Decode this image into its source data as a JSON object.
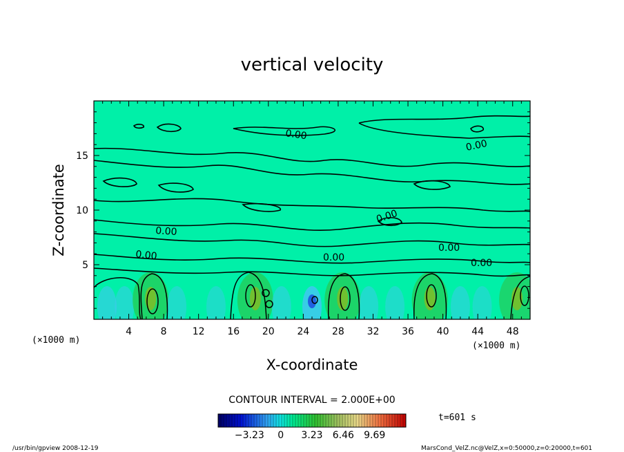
{
  "chart_data": {
    "type": "heatmap",
    "title": "vertical velocity",
    "xlabel": "X-coordinate",
    "ylabel": "Z-coordinate",
    "x_unit_left": "(×1000 m)",
    "x_unit_right": "(×1000 m)",
    "xlim": [
      0,
      50
    ],
    "ylim": [
      0,
      20
    ],
    "x_ticks": [
      4,
      8,
      12,
      16,
      20,
      24,
      28,
      32,
      36,
      40,
      44,
      48
    ],
    "y_ticks": [
      5,
      10,
      15
    ],
    "contour_interval_label": "CONTOUR INTERVAL = 2.000E+00",
    "contour_labels": [
      "0.00",
      "0.00",
      "0.00",
      "0.00",
      "0.00",
      "0.00",
      "0.00",
      "0.00",
      "0.00"
    ],
    "colorbar_ticks": [
      "-3.23",
      "0",
      "3.23",
      "6.46",
      "9.69"
    ],
    "colorbar_range": [
      -6.46,
      12.92
    ],
    "background_value": 0,
    "colors": {
      "background_field": "#00f0a8",
      "negative": "#40c8f0",
      "positive": "#20d060",
      "contour": "#000000"
    },
    "cells": [
      {
        "x": 1.5,
        "value": -1.8
      },
      {
        "x": 3.5,
        "value": -1.5
      },
      {
        "x": 6.5,
        "value": 2.6
      },
      {
        "x": 9.5,
        "value": -1.4
      },
      {
        "x": 14.0,
        "value": -1.3
      },
      {
        "x": 18.5,
        "value": 2.6
      },
      {
        "x": 21.5,
        "value": -1.5
      },
      {
        "x": 25.0,
        "value": -2.6
      },
      {
        "x": 28.5,
        "value": 2.6
      },
      {
        "x": 31.5,
        "value": -1.5
      },
      {
        "x": 34.5,
        "value": -1.4
      },
      {
        "x": 38.5,
        "value": 2.6
      },
      {
        "x": 42.0,
        "value": -1.5
      },
      {
        "x": 44.5,
        "value": -1.3
      },
      {
        "x": 48.5,
        "value": 2.4
      }
    ]
  },
  "time_label": "t=601 s",
  "footer_left": "/usr/bin/gpview  2008-12-19",
  "footer_right": "MarsCond_VelZ.nc@VelZ,x=0:50000,z=0:20000,t=601"
}
